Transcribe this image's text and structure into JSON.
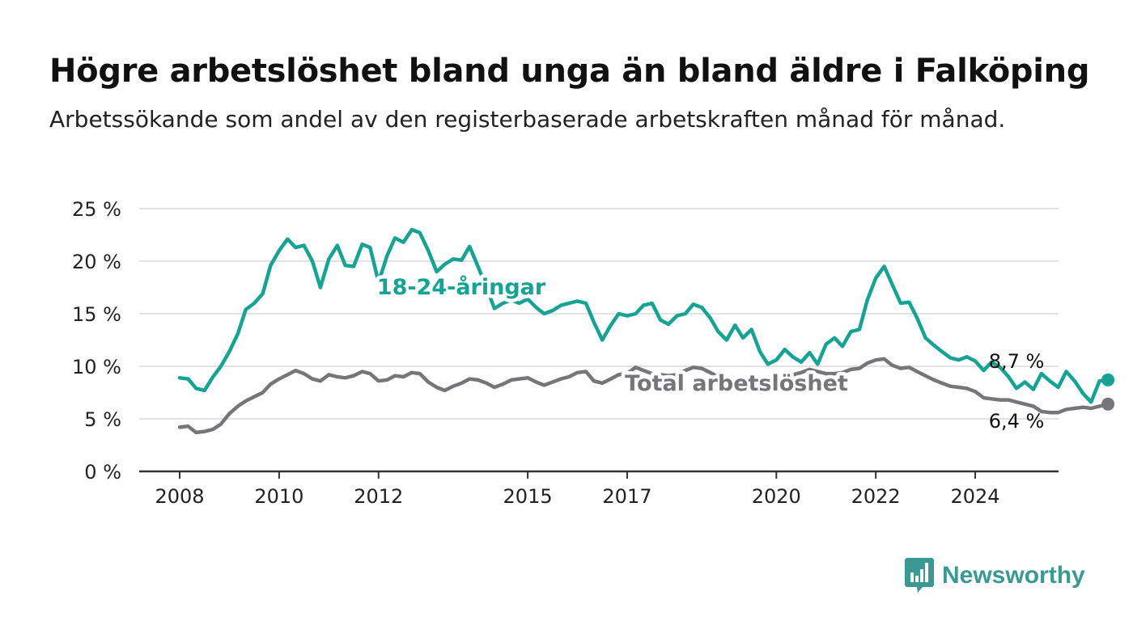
{
  "title": "Högre arbetslöshet bland unga än bland äldre i Falköping",
  "subtitle": "Arbetssökande som andel av den registerbaserade arbetskraften månad för månad.",
  "brand": {
    "name": "Newsworthy",
    "icon": "bar-chart-logo-icon",
    "color": "#3a9a93"
  },
  "chart_data": {
    "type": "line",
    "ylim": [
      0,
      25
    ],
    "y_ticks": [
      0,
      5,
      10,
      15,
      20,
      25
    ],
    "y_tick_labels": [
      "0 %",
      "5 %",
      "10 %",
      "15 %",
      "20 %",
      "25 %"
    ],
    "x_ticks": [
      2008,
      2010,
      2012,
      2015,
      2017,
      2020,
      2022,
      2024
    ],
    "x_tick_labels": [
      "2008",
      "2010",
      "2012",
      "2015",
      "2017",
      "2020",
      "2022",
      "2024"
    ],
    "grid": "horizontal",
    "series": [
      {
        "name": "18-24-åringar",
        "color": "#16a394",
        "end_label": "8,7 %",
        "points": [
          [
            2008.0,
            8.9
          ],
          [
            2008.17,
            8.8
          ],
          [
            2008.33,
            7.9
          ],
          [
            2008.5,
            7.7
          ],
          [
            2008.67,
            9.0
          ],
          [
            2008.83,
            10.0
          ],
          [
            2009.0,
            11.4
          ],
          [
            2009.17,
            13.1
          ],
          [
            2009.33,
            15.4
          ],
          [
            2009.5,
            16.0
          ],
          [
            2009.67,
            16.9
          ],
          [
            2009.83,
            19.6
          ],
          [
            2010.0,
            21.0
          ],
          [
            2010.17,
            22.1
          ],
          [
            2010.33,
            21.3
          ],
          [
            2010.5,
            21.5
          ],
          [
            2010.67,
            20.0
          ],
          [
            2010.83,
            17.5
          ],
          [
            2011.0,
            20.2
          ],
          [
            2011.17,
            21.5
          ],
          [
            2011.33,
            19.6
          ],
          [
            2011.5,
            19.5
          ],
          [
            2011.67,
            21.6
          ],
          [
            2011.83,
            21.3
          ],
          [
            2012.0,
            18.0
          ],
          [
            2012.17,
            20.5
          ],
          [
            2012.33,
            22.2
          ],
          [
            2012.5,
            21.8
          ],
          [
            2012.67,
            23.0
          ],
          [
            2012.83,
            22.7
          ],
          [
            2013.0,
            21.0
          ],
          [
            2013.17,
            19.0
          ],
          [
            2013.33,
            19.7
          ],
          [
            2013.5,
            20.2
          ],
          [
            2013.67,
            20.1
          ],
          [
            2013.83,
            21.4
          ],
          [
            2014.0,
            19.5
          ],
          [
            2014.17,
            17.5
          ],
          [
            2014.33,
            15.5
          ],
          [
            2014.5,
            16.0
          ],
          [
            2014.67,
            16.3
          ],
          [
            2014.83,
            16.0
          ],
          [
            2015.0,
            16.4
          ],
          [
            2015.17,
            15.6
          ],
          [
            2015.33,
            15.0
          ],
          [
            2015.5,
            15.3
          ],
          [
            2015.67,
            15.8
          ],
          [
            2015.83,
            16.0
          ],
          [
            2016.0,
            16.2
          ],
          [
            2016.17,
            16.0
          ],
          [
            2016.33,
            14.2
          ],
          [
            2016.5,
            12.5
          ],
          [
            2016.67,
            13.9
          ],
          [
            2016.83,
            15.0
          ],
          [
            2017.0,
            14.8
          ],
          [
            2017.17,
            15.0
          ],
          [
            2017.33,
            15.8
          ],
          [
            2017.5,
            16.0
          ],
          [
            2017.67,
            14.4
          ],
          [
            2017.83,
            14.0
          ],
          [
            2018.0,
            14.8
          ],
          [
            2018.17,
            15.0
          ],
          [
            2018.33,
            15.9
          ],
          [
            2018.5,
            15.6
          ],
          [
            2018.67,
            14.6
          ],
          [
            2018.83,
            13.3
          ],
          [
            2019.0,
            12.5
          ],
          [
            2019.17,
            13.9
          ],
          [
            2019.33,
            12.7
          ],
          [
            2019.5,
            13.5
          ],
          [
            2019.67,
            11.4
          ],
          [
            2019.83,
            10.2
          ],
          [
            2020.0,
            10.6
          ],
          [
            2020.17,
            11.6
          ],
          [
            2020.33,
            10.9
          ],
          [
            2020.5,
            10.4
          ],
          [
            2020.67,
            11.3
          ],
          [
            2020.83,
            10.2
          ],
          [
            2021.0,
            12.1
          ],
          [
            2021.17,
            12.7
          ],
          [
            2021.33,
            11.9
          ],
          [
            2021.5,
            13.3
          ],
          [
            2021.67,
            13.5
          ],
          [
            2021.83,
            16.3
          ],
          [
            2022.0,
            18.4
          ],
          [
            2022.17,
            19.5
          ],
          [
            2022.33,
            17.8
          ],
          [
            2022.5,
            16.0
          ],
          [
            2022.67,
            16.1
          ],
          [
            2022.83,
            14.6
          ],
          [
            2023.0,
            12.7
          ],
          [
            2023.17,
            12.0
          ],
          [
            2023.33,
            11.4
          ],
          [
            2023.5,
            10.8
          ],
          [
            2023.67,
            10.6
          ],
          [
            2023.83,
            10.9
          ],
          [
            2024.0,
            10.5
          ],
          [
            2024.17,
            9.6
          ],
          [
            2024.33,
            10.4
          ],
          [
            2024.5,
            9.9
          ],
          [
            2024.67,
            9.0
          ],
          [
            2024.83,
            7.9
          ],
          [
            2025.0,
            8.5
          ],
          [
            2025.17,
            7.8
          ],
          [
            2025.33,
            9.3
          ],
          [
            2025.5,
            8.6
          ],
          [
            2025.67,
            8.0
          ],
          [
            2025.83,
            9.5
          ],
          [
            2026.0,
            8.6
          ],
          [
            2026.17,
            7.4
          ],
          [
            2026.33,
            6.6
          ],
          [
            2026.5,
            8.6
          ],
          [
            2026.67,
            8.7
          ]
        ]
      },
      {
        "name": "Total arbetslöshet",
        "color": "#76757a",
        "end_label": "6,4 %",
        "points": [
          [
            2008.0,
            4.2
          ],
          [
            2008.17,
            4.3
          ],
          [
            2008.33,
            3.7
          ],
          [
            2008.5,
            3.8
          ],
          [
            2008.67,
            4.0
          ],
          [
            2008.83,
            4.5
          ],
          [
            2009.0,
            5.5
          ],
          [
            2009.17,
            6.2
          ],
          [
            2009.33,
            6.7
          ],
          [
            2009.5,
            7.1
          ],
          [
            2009.67,
            7.5
          ],
          [
            2009.83,
            8.3
          ],
          [
            2010.0,
            8.8
          ],
          [
            2010.17,
            9.2
          ],
          [
            2010.33,
            9.6
          ],
          [
            2010.5,
            9.3
          ],
          [
            2010.67,
            8.8
          ],
          [
            2010.83,
            8.6
          ],
          [
            2011.0,
            9.2
          ],
          [
            2011.17,
            9.0
          ],
          [
            2011.33,
            8.9
          ],
          [
            2011.5,
            9.1
          ],
          [
            2011.67,
            9.5
          ],
          [
            2011.83,
            9.3
          ],
          [
            2012.0,
            8.6
          ],
          [
            2012.17,
            8.7
          ],
          [
            2012.33,
            9.1
          ],
          [
            2012.5,
            9.0
          ],
          [
            2012.67,
            9.4
          ],
          [
            2012.83,
            9.3
          ],
          [
            2013.0,
            8.5
          ],
          [
            2013.17,
            8.0
          ],
          [
            2013.33,
            7.7
          ],
          [
            2013.5,
            8.1
          ],
          [
            2013.67,
            8.4
          ],
          [
            2013.83,
            8.8
          ],
          [
            2014.0,
            8.7
          ],
          [
            2014.17,
            8.4
          ],
          [
            2014.33,
            8.0
          ],
          [
            2014.5,
            8.3
          ],
          [
            2014.67,
            8.7
          ],
          [
            2014.83,
            8.8
          ],
          [
            2015.0,
            8.9
          ],
          [
            2015.17,
            8.5
          ],
          [
            2015.33,
            8.2
          ],
          [
            2015.5,
            8.5
          ],
          [
            2015.67,
            8.8
          ],
          [
            2015.83,
            9.0
          ],
          [
            2016.0,
            9.4
          ],
          [
            2016.17,
            9.5
          ],
          [
            2016.33,
            8.6
          ],
          [
            2016.5,
            8.4
          ],
          [
            2016.67,
            8.8
          ],
          [
            2016.83,
            9.2
          ],
          [
            2017.0,
            9.3
          ],
          [
            2017.17,
            9.9
          ],
          [
            2017.33,
            9.6
          ],
          [
            2017.5,
            9.3
          ],
          [
            2017.67,
            9.2
          ],
          [
            2017.83,
            9.1
          ],
          [
            2018.0,
            9.2
          ],
          [
            2018.17,
            9.6
          ],
          [
            2018.33,
            9.9
          ],
          [
            2018.5,
            9.8
          ],
          [
            2018.67,
            9.4
          ],
          [
            2018.83,
            9.0
          ],
          [
            2019.0,
            8.6
          ],
          [
            2019.17,
            8.8
          ],
          [
            2019.33,
            8.9
          ],
          [
            2019.5,
            8.7
          ],
          [
            2019.67,
            8.5
          ],
          [
            2019.83,
            8.7
          ],
          [
            2020.0,
            8.9
          ],
          [
            2020.17,
            9.0
          ],
          [
            2020.33,
            9.2
          ],
          [
            2020.5,
            9.4
          ],
          [
            2020.67,
            9.7
          ],
          [
            2020.83,
            9.5
          ],
          [
            2021.0,
            9.3
          ],
          [
            2021.17,
            9.3
          ],
          [
            2021.33,
            9.4
          ],
          [
            2021.5,
            9.7
          ],
          [
            2021.67,
            9.8
          ],
          [
            2021.83,
            10.3
          ],
          [
            2022.0,
            10.6
          ],
          [
            2022.17,
            10.7
          ],
          [
            2022.33,
            10.1
          ],
          [
            2022.5,
            9.8
          ],
          [
            2022.67,
            9.9
          ],
          [
            2022.83,
            9.5
          ],
          [
            2023.0,
            9.1
          ],
          [
            2023.17,
            8.7
          ],
          [
            2023.33,
            8.4
          ],
          [
            2023.5,
            8.1
          ],
          [
            2023.67,
            8.0
          ],
          [
            2023.83,
            7.9
          ],
          [
            2024.0,
            7.6
          ],
          [
            2024.17,
            7.0
          ],
          [
            2024.33,
            6.9
          ],
          [
            2024.5,
            6.8
          ],
          [
            2024.67,
            6.8
          ],
          [
            2024.83,
            6.6
          ],
          [
            2025.0,
            6.4
          ],
          [
            2025.17,
            6.2
          ],
          [
            2025.33,
            5.7
          ],
          [
            2025.5,
            5.6
          ],
          [
            2025.67,
            5.6
          ],
          [
            2025.83,
            5.9
          ],
          [
            2026.0,
            6.0
          ],
          [
            2026.17,
            6.1
          ],
          [
            2026.33,
            6.0
          ],
          [
            2026.5,
            6.2
          ],
          [
            2026.67,
            6.4
          ]
        ]
      }
    ]
  }
}
